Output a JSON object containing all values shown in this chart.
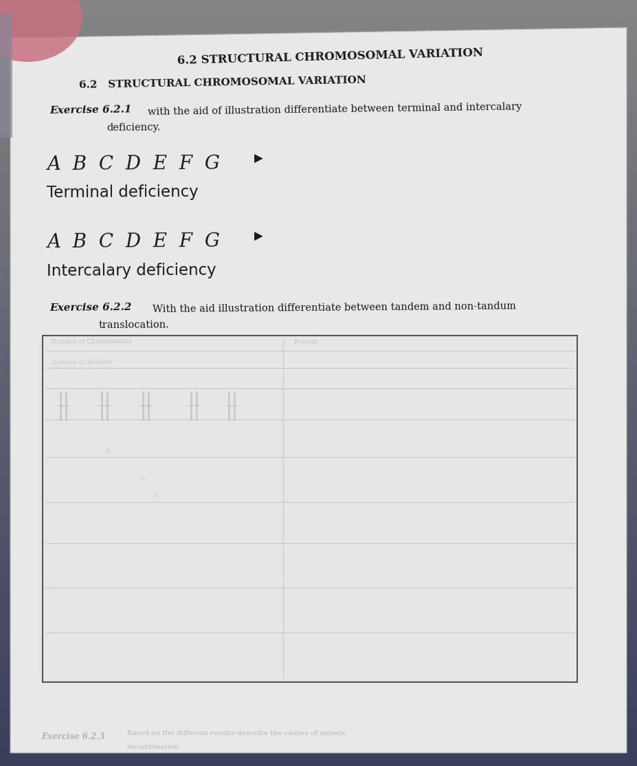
{
  "bg_top_color": "#3a3f5c",
  "bg_bottom_color": "#7a7a7a",
  "paper_color": "#e8e8e6",
  "paper_shadow": "#d0d0ce",
  "text_color": "#1a1a1a",
  "faint_color": "#aaaaaa",
  "title": "6.2 STRUCTURAL CHROMOSOMAL VARIATION",
  "title_sub": "6.2   STRUCTURAL CHROMOSOMAL VARIATION",
  "ex621_label": "Exercise 6.2.1",
  "ex621_rest1": "with the aid of illustration differentiate between terminal and intercalary",
  "ex621_rest2": "deficiency.",
  "chrom_letters": "A  B  C  D  E  F  G",
  "terminal_label": "Terminal deficiency",
  "intercalary_label": "Intercalary deficiency",
  "ex622_label": "Exercise 6.2.2",
  "ex622_rest1": "With the aid illustration differentiate between tandem and non-tandum",
  "ex622_rest2": "translocation.",
  "box_border": "#555555",
  "line_color": "#bbbbbb",
  "faint_inner": "#c0c0c0"
}
